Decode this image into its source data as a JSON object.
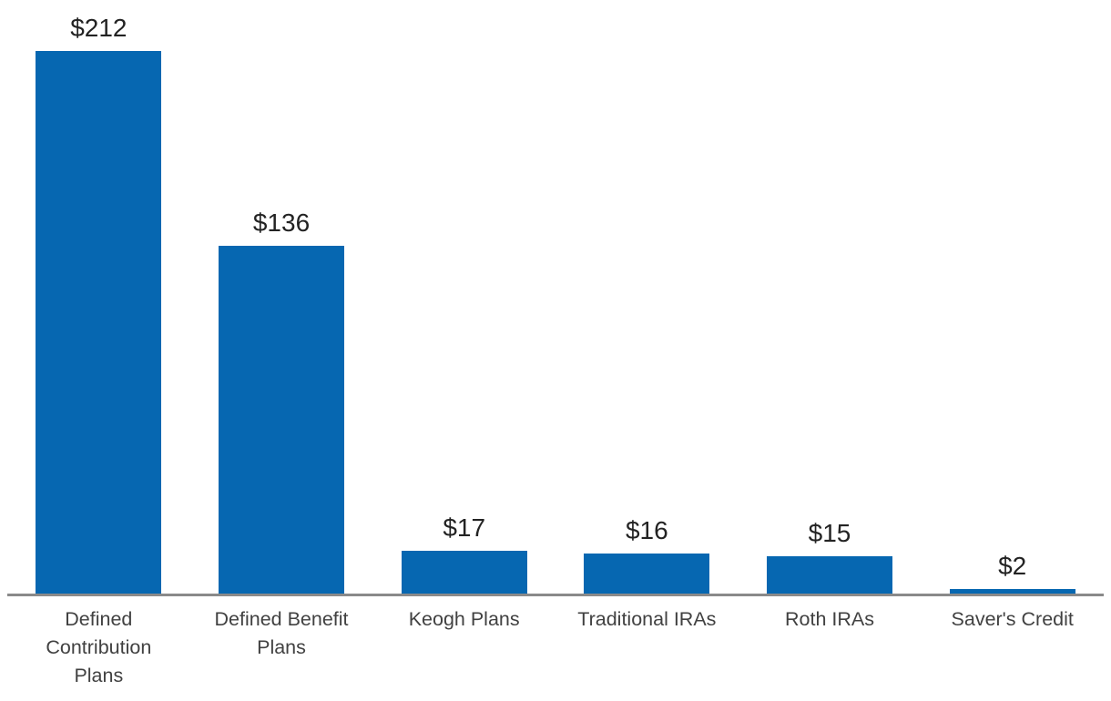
{
  "chart_data": {
    "type": "bar",
    "title": "",
    "xlabel": "",
    "ylabel": "",
    "categories": [
      "Defined Contribution Plans",
      "Defined Benefit Plans",
      "Keogh Plans",
      "Traditional IRAs",
      "Roth IRAs",
      "Saver's Credit"
    ],
    "category_display": [
      "Defined\nContribution\nPlans",
      "Defined Benefit\nPlans",
      "Keogh Plans",
      "Traditional IRAs",
      "Roth IRAs",
      "Saver's Credit"
    ],
    "values": [
      212,
      136,
      17,
      16,
      15,
      2
    ],
    "value_labels": [
      "$212",
      "$136",
      "$17",
      "$16",
      "$15",
      "$2"
    ],
    "ylim": [
      0,
      232
    ],
    "grid": false,
    "legend": false,
    "value_labels_position": "above-bars",
    "colors": {
      "bar": "#0667B1",
      "axis_line": "#8A8A8A",
      "value_label": "#232323",
      "category_label": "#414141",
      "background": "#FFFFFF"
    }
  }
}
